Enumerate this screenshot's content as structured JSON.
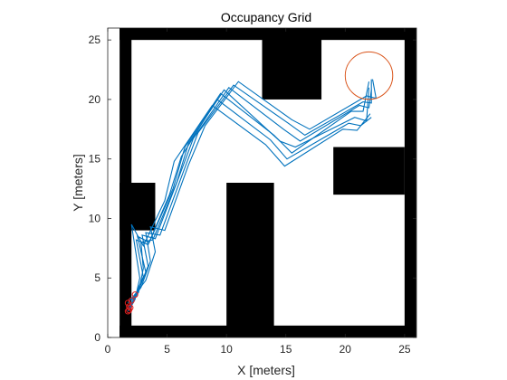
{
  "chart_data": {
    "type": "line",
    "title": "Occupancy Grid",
    "xlabel": "X [meters]",
    "ylabel": "Y [meters]",
    "xlim": [
      0,
      26
    ],
    "ylim": [
      0,
      26
    ],
    "xticks": [
      0,
      5,
      10,
      15,
      20,
      25
    ],
    "yticks": [
      0,
      5,
      10,
      15,
      20,
      25
    ],
    "grid": false,
    "colors": {
      "occupied": "#000000",
      "free": "#ffffff",
      "path": "#0072bd",
      "marker": "#d95319"
    },
    "occupied_cells": [
      {
        "x": [
          1,
          26
        ],
        "y": [
          25,
          26
        ]
      },
      {
        "x": [
          1,
          26
        ],
        "y": [
          0,
          1
        ]
      },
      {
        "x": [
          1,
          2
        ],
        "y": [
          0,
          26
        ]
      },
      {
        "x": [
          25,
          26
        ],
        "y": [
          0,
          26
        ]
      },
      {
        "x": [
          13,
          18
        ],
        "y": [
          20,
          26
        ]
      },
      {
        "x": [
          1,
          4
        ],
        "y": [
          9,
          13
        ]
      },
      {
        "x": [
          10,
          14
        ],
        "y": [
          0,
          13
        ]
      },
      {
        "x": [
          19,
          25
        ],
        "y": [
          12,
          16
        ]
      }
    ],
    "goal_circle": {
      "center": [
        22,
        22
      ],
      "radius": 2
    },
    "start_markers": [
      [
        1.7,
        2.2
      ],
      [
        1.8,
        2.6
      ],
      [
        1.7,
        2.9
      ],
      [
        2.0,
        3.1
      ],
      [
        1.9,
        2.5
      ],
      [
        2.3,
        3.6
      ],
      [
        1.8,
        2.3
      ]
    ],
    "series": [
      {
        "values": [
          [
            1.7,
            2.2
          ],
          [
            2.4,
            3.5
          ],
          [
            3.2,
            5.5
          ],
          [
            2.5,
            8.5
          ],
          [
            3.5,
            8.0
          ],
          [
            5.5,
            12.5
          ],
          [
            6.5,
            16.0
          ],
          [
            9.5,
            20.5
          ],
          [
            14.0,
            17.0
          ],
          [
            15.5,
            15.5
          ],
          [
            20.5,
            19.0
          ],
          [
            21.5,
            19.0
          ],
          [
            22.0,
            21.5
          ]
        ]
      },
      {
        "values": [
          [
            1.8,
            2.6
          ],
          [
            2.6,
            3.8
          ],
          [
            3.0,
            5.8
          ],
          [
            2.8,
            8.0
          ],
          [
            3.8,
            8.2
          ],
          [
            5.8,
            13.0
          ],
          [
            6.8,
            16.3
          ],
          [
            9.8,
            20.8
          ],
          [
            14.5,
            16.5
          ],
          [
            15.8,
            16.0
          ],
          [
            20.8,
            18.5
          ],
          [
            21.8,
            18.2
          ],
          [
            22.0,
            21.0
          ]
        ]
      },
      {
        "values": [
          [
            1.7,
            2.9
          ],
          [
            2.6,
            4.0
          ],
          [
            3.4,
            6.0
          ],
          [
            2.9,
            8.6
          ],
          [
            4.0,
            8.3
          ],
          [
            6.0,
            13.5
          ],
          [
            7.2,
            16.7
          ],
          [
            10.2,
            21.0
          ],
          [
            14.8,
            17.5
          ],
          [
            16.2,
            16.5
          ],
          [
            21.2,
            19.5
          ],
          [
            22.0,
            19.3
          ],
          [
            22.2,
            20.8
          ]
        ]
      },
      {
        "values": [
          [
            2.0,
            3.1
          ],
          [
            2.8,
            4.2
          ],
          [
            3.6,
            6.4
          ],
          [
            3.2,
            8.8
          ],
          [
            4.4,
            8.6
          ],
          [
            6.4,
            14.0
          ],
          [
            7.6,
            17.2
          ],
          [
            10.6,
            21.2
          ],
          [
            15.2,
            18.0
          ],
          [
            16.6,
            17.0
          ],
          [
            21.5,
            19.8
          ],
          [
            22.2,
            19.7
          ],
          [
            22.2,
            21.7
          ]
        ]
      },
      {
        "values": [
          [
            1.9,
            2.5
          ],
          [
            2.2,
            3.3
          ],
          [
            3.0,
            5.1
          ],
          [
            2.4,
            8.2
          ],
          [
            3.4,
            7.8
          ],
          [
            5.2,
            12.0
          ],
          [
            6.2,
            15.2
          ],
          [
            9.2,
            20.0
          ],
          [
            13.7,
            16.6
          ],
          [
            15.1,
            15.0
          ],
          [
            20.3,
            18.0
          ],
          [
            21.3,
            17.8
          ],
          [
            22.2,
            18.5
          ]
        ]
      },
      {
        "values": [
          [
            2.3,
            3.6
          ],
          [
            3.2,
            4.8
          ],
          [
            4.0,
            7.2
          ],
          [
            3.6,
            9.3
          ],
          [
            4.8,
            9.0
          ],
          [
            6.8,
            14.5
          ],
          [
            8.2,
            17.8
          ],
          [
            11.0,
            21.5
          ],
          [
            15.5,
            18.3
          ],
          [
            17.0,
            17.5
          ],
          [
            21.8,
            20.3
          ],
          [
            22.6,
            20.1
          ],
          [
            22.3,
            21.7
          ]
        ]
      },
      {
        "values": [
          [
            1.8,
            2.3
          ],
          [
            2.3,
            3.2
          ],
          [
            2.7,
            5.0
          ],
          [
            2.0,
            9.5
          ],
          [
            3.0,
            7.7
          ],
          [
            4.8,
            11.5
          ],
          [
            5.6,
            14.8
          ],
          [
            8.8,
            19.5
          ],
          [
            13.3,
            16.2
          ],
          [
            14.9,
            14.4
          ],
          [
            19.8,
            17.5
          ],
          [
            21.0,
            17.4
          ],
          [
            22.1,
            18.8
          ]
        ]
      }
    ]
  }
}
